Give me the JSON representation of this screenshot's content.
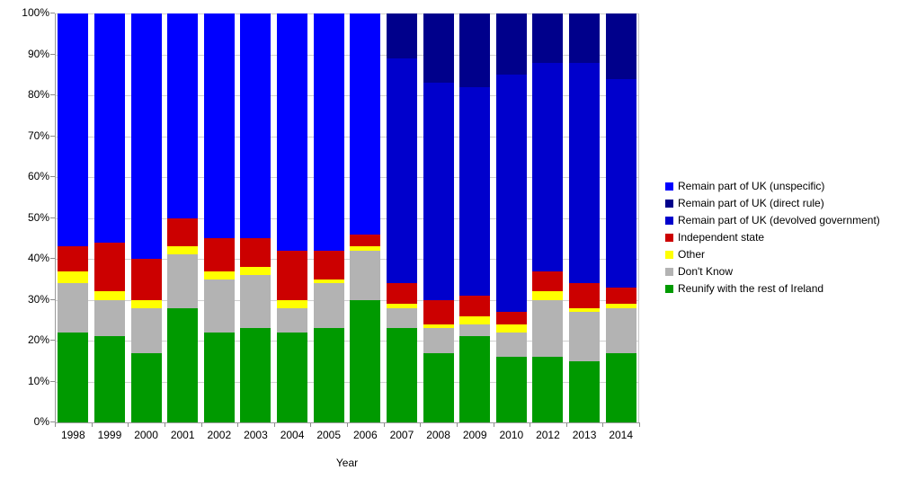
{
  "chart_data": {
    "type": "bar",
    "stacked": true,
    "stacked_total": 100,
    "title": "",
    "xlabel": "Year",
    "ylabel": "",
    "ylim": [
      0,
      100
    ],
    "y_tick_step": 10,
    "y_ticks": [
      "0%",
      "10%",
      "20%",
      "30%",
      "40%",
      "50%",
      "60%",
      "70%",
      "80%",
      "90%",
      "100%"
    ],
    "grid": true,
    "legend_position": "right",
    "categories": [
      "1998",
      "1999",
      "2000",
      "2001",
      "2002",
      "2003",
      "2004",
      "2005",
      "2006",
      "2007",
      "2008",
      "2009",
      "2010",
      "2012",
      "2013",
      "2014"
    ],
    "series": [
      {
        "name": "Reunify with the rest of Ireland",
        "color": "#009A00",
        "values": [
          22,
          21,
          17,
          28,
          22,
          23,
          22,
          23,
          30,
          23,
          17,
          21,
          16,
          16,
          15,
          17
        ]
      },
      {
        "name": "Don't Know",
        "color": "#B3B3B3",
        "values": [
          12,
          9,
          11,
          13,
          13,
          13,
          6,
          11,
          12,
          5,
          6,
          3,
          6,
          14,
          12,
          11
        ]
      },
      {
        "name": "Other",
        "color": "#FFFF00",
        "values": [
          3,
          2,
          2,
          2,
          2,
          2,
          2,
          1,
          1,
          1,
          1,
          2,
          2,
          2,
          1,
          1
        ]
      },
      {
        "name": "Independent state",
        "color": "#CC0000",
        "values": [
          6,
          12,
          10,
          7,
          8,
          7,
          12,
          7,
          3,
          5,
          6,
          5,
          3,
          5,
          6,
          4
        ]
      },
      {
        "name": "Remain part of UK (unspecific)",
        "color": "#0000FF",
        "values": [
          57,
          56,
          60,
          50,
          55,
          55,
          58,
          58,
          54,
          0,
          0,
          0,
          0,
          0,
          0,
          0
        ]
      },
      {
        "name": "Remain part of UK (devolved government)",
        "color": "#0000CC",
        "values": [
          0,
          0,
          0,
          0,
          0,
          0,
          0,
          0,
          0,
          55,
          53,
          51,
          58,
          51,
          54,
          51
        ]
      },
      {
        "name": "Remain part of UK (direct rule)",
        "color": "#00008B",
        "values": [
          0,
          0,
          0,
          0,
          0,
          0,
          0,
          0,
          0,
          11,
          17,
          18,
          15,
          12,
          12,
          16
        ]
      }
    ],
    "legend_order": [
      "Remain part of UK (unspecific)",
      "Remain part of UK (direct rule)",
      "Remain part of UK (devolved government)",
      "Independent state",
      "Other",
      "Don't Know",
      "Reunify with the rest of Ireland"
    ],
    "colors": {
      "uk_unspecific": "#0000FF",
      "uk_direct_rule": "#00008B",
      "uk_devolved_government": "#0000CC",
      "independent_state": "#CC0000",
      "other": "#FFFF00",
      "dont_know": "#B3B3B3",
      "reunify": "#009A00",
      "gridline": "#D0D0D0",
      "axis": "#9A9A9A",
      "background": "#FFFFFF",
      "text": "#000000"
    }
  }
}
